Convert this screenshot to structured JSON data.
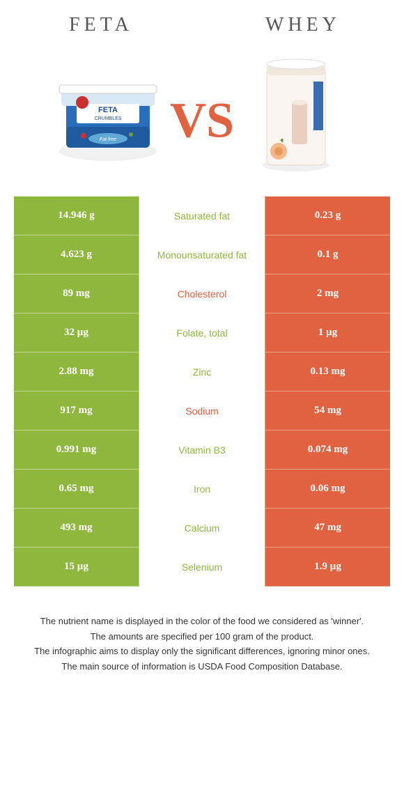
{
  "left_food": {
    "name": "FETA",
    "color": "#8fb73e"
  },
  "right_food": {
    "name": "WHEY",
    "color": "#e06240"
  },
  "vs_text": "VS",
  "vs_color": "#e06240",
  "nutrients": [
    {
      "label": "Saturated fat",
      "left": "14.946 g",
      "right": "0.23 g",
      "winner": "left"
    },
    {
      "label": "Monounsaturated fat",
      "left": "4.623 g",
      "right": "0.1 g",
      "winner": "left"
    },
    {
      "label": "Cholesterol",
      "left": "89 mg",
      "right": "2 mg",
      "winner": "right"
    },
    {
      "label": "Folate, total",
      "left": "32 µg",
      "right": "1 µg",
      "winner": "left"
    },
    {
      "label": "Zinc",
      "left": "2.88 mg",
      "right": "0.13 mg",
      "winner": "left"
    },
    {
      "label": "Sodium",
      "left": "917 mg",
      "right": "54 mg",
      "winner": "right"
    },
    {
      "label": "Vitamin B3",
      "left": "0.991 mg",
      "right": "0.074 mg",
      "winner": "left"
    },
    {
      "label": "Iron",
      "left": "0.65 mg",
      "right": "0.06 mg",
      "winner": "left"
    },
    {
      "label": "Calcium",
      "left": "493 mg",
      "right": "47 mg",
      "winner": "left"
    },
    {
      "label": "Selenium",
      "left": "15 µg",
      "right": "1.9 µg",
      "winner": "left"
    }
  ],
  "footer_lines": [
    "The nutrient name is displayed in the color of the food we considered as 'winner'.",
    "The amounts are specified per 100 gram of the product.",
    "The infographic aims to display only the significant differences, ignoring minor ones.",
    "The main source of information is USDA Food Composition Database."
  ]
}
